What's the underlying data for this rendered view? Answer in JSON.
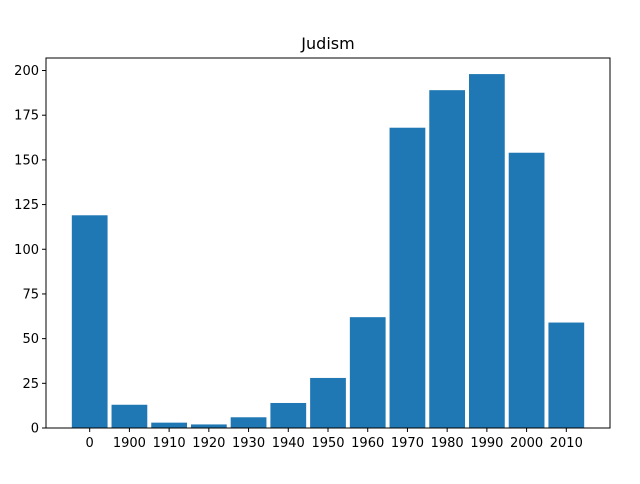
{
  "chart_data": {
    "type": "bar",
    "title": "Judism",
    "xlabel": "",
    "ylabel": "",
    "categories": [
      "0",
      "1900",
      "1910",
      "1920",
      "1930",
      "1940",
      "1950",
      "1960",
      "1970",
      "1980",
      "1990",
      "2000",
      "2010"
    ],
    "values": [
      119,
      13,
      3,
      2,
      6,
      14,
      28,
      62,
      168,
      189,
      198,
      154,
      59
    ],
    "ylim": [
      0,
      207
    ],
    "yticks": [
      0,
      25,
      50,
      75,
      100,
      125,
      150,
      175,
      200
    ],
    "bar_color": "#1f77b4",
    "grid": false,
    "legend": "none"
  }
}
